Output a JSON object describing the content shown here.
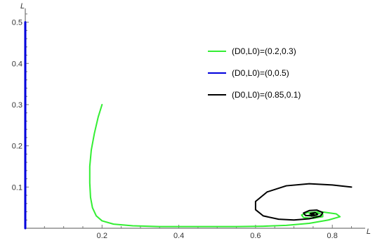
{
  "chart_data": {
    "type": "line",
    "xlabel": "L",
    "ylabel": "L",
    "xlim": [
      0,
      0.86
    ],
    "ylim": [
      0,
      0.53
    ],
    "xticks": [
      0.2,
      0.4,
      0.6,
      0.8
    ],
    "xtick_labels": [
      "0.2",
      "0.4",
      "0.6",
      "0.8"
    ],
    "yticks": [
      0.1,
      0.2,
      0.3,
      0.4,
      0.5
    ],
    "ytick_labels": [
      "0.1",
      "0.2",
      "0.3",
      "0.4",
      "0.5"
    ],
    "grid": false,
    "legend_position": "top-right",
    "series": [
      {
        "name": "(D0,L0)=(0.2,0.3)",
        "color": "#33ee33",
        "points": [
          [
            0.2,
            0.3
          ],
          [
            0.19,
            0.27
          ],
          [
            0.18,
            0.23
          ],
          [
            0.172,
            0.19
          ],
          [
            0.168,
            0.15
          ],
          [
            0.168,
            0.11
          ],
          [
            0.17,
            0.075
          ],
          [
            0.175,
            0.05
          ],
          [
            0.185,
            0.03
          ],
          [
            0.2,
            0.018
          ],
          [
            0.23,
            0.01
          ],
          [
            0.28,
            0.006
          ],
          [
            0.35,
            0.004
          ],
          [
            0.45,
            0.004
          ],
          [
            0.55,
            0.004
          ],
          [
            0.62,
            0.005
          ],
          [
            0.68,
            0.007
          ],
          [
            0.74,
            0.012
          ],
          [
            0.79,
            0.02
          ],
          [
            0.82,
            0.028
          ],
          [
            0.81,
            0.035
          ],
          [
            0.77,
            0.04
          ],
          [
            0.735,
            0.038
          ],
          [
            0.72,
            0.032
          ],
          [
            0.725,
            0.026
          ],
          [
            0.75,
            0.024
          ],
          [
            0.775,
            0.028
          ],
          [
            0.775,
            0.034
          ],
          [
            0.755,
            0.037
          ],
          [
            0.74,
            0.034
          ],
          [
            0.745,
            0.029
          ],
          [
            0.76,
            0.031
          ],
          [
            0.752,
            0.034
          ]
        ]
      },
      {
        "name": "(D0,L0)=(0,0.5)",
        "color": "#0000dd",
        "points": [
          [
            0.0,
            0.5
          ],
          [
            0.0,
            0.3
          ],
          [
            0.0,
            0.1
          ],
          [
            0.0,
            0.0
          ]
        ]
      },
      {
        "name": "(D0,L0)=(0.85,0.1)",
        "color": "#000000",
        "points": [
          [
            0.85,
            0.1
          ],
          [
            0.8,
            0.105
          ],
          [
            0.74,
            0.108
          ],
          [
            0.68,
            0.103
          ],
          [
            0.63,
            0.088
          ],
          [
            0.6,
            0.065
          ],
          [
            0.6,
            0.045
          ],
          [
            0.62,
            0.03
          ],
          [
            0.66,
            0.022
          ],
          [
            0.7,
            0.02
          ],
          [
            0.74,
            0.023
          ],
          [
            0.77,
            0.03
          ],
          [
            0.775,
            0.038
          ],
          [
            0.76,
            0.044
          ],
          [
            0.74,
            0.043
          ],
          [
            0.725,
            0.037
          ],
          [
            0.73,
            0.031
          ],
          [
            0.75,
            0.03
          ],
          [
            0.762,
            0.034
          ],
          [
            0.755,
            0.038
          ],
          [
            0.743,
            0.036
          ],
          [
            0.745,
            0.033
          ],
          [
            0.752,
            0.034
          ]
        ]
      }
    ]
  }
}
